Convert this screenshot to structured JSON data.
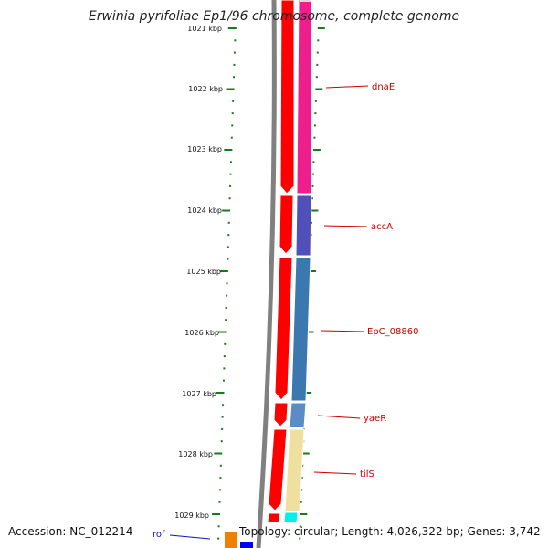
{
  "title": "Erwinia pyrifoliae Ep1/96 chromosome, complete genome",
  "accession": "Accession: NC_012214",
  "topology": "Topology: circular; Length: 4,026,322 bp; Genes: 3,742",
  "colors": {
    "cds_red": "#ff0000",
    "backbone_gray": "#808080",
    "tick_green": "#1a7a1a",
    "label_red": "#cc0000",
    "label_blue": "#1010cc",
    "cog_magenta": "#ee1e8c",
    "cog_purple": "#5050b8",
    "cog_steelblue": "#3c78b0",
    "cog_lightblue": "#5a8cc8",
    "cog_khaki": "#f0e0a0",
    "cog_cyan": "#00f0f0",
    "orange": "#f08000",
    "blue": "#0000ff"
  },
  "kbp_labels": [
    "1021 kbp",
    "1022 kbp",
    "1023 kbp",
    "1024 kbp",
    "1025 kbp",
    "1026 kbp",
    "1027 kbp",
    "1028 kbp",
    "1029 kbp"
  ],
  "genes": [
    {
      "label": "dnaE",
      "color": "label_red"
    },
    {
      "label": "accA",
      "color": "label_red"
    },
    {
      "label": "EpC_08860",
      "color": "label_red"
    },
    {
      "label": "yaeR",
      "color": "label_red"
    },
    {
      "label": "tilS",
      "color": "label_red"
    },
    {
      "label": "rof",
      "color": "label_blue"
    }
  ]
}
